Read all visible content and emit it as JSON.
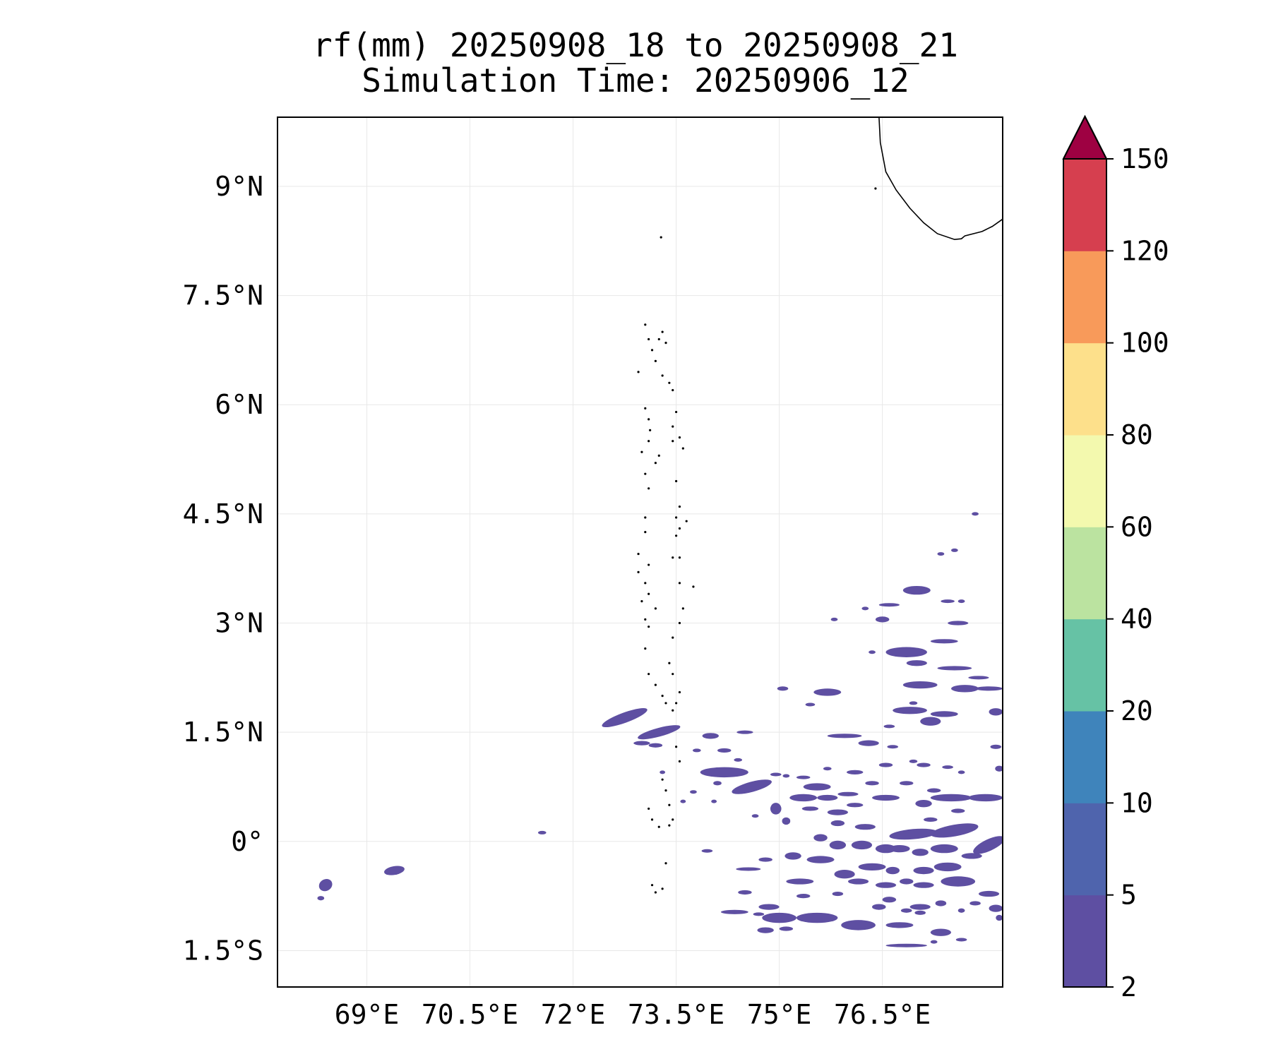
{
  "title": {
    "line1": "rf(mm) 20250908_18 to 20250908_21",
    "line2": "Simulation Time: 20250906_12"
  },
  "map": {
    "lon_range": [
      67.7,
      78.25
    ],
    "lat_range": [
      -2.0,
      9.95
    ],
    "x_ticks": [
      {
        "value": 69.0,
        "label": "69°E"
      },
      {
        "value": 70.5,
        "label": "70.5°E"
      },
      {
        "value": 72.0,
        "label": "72°E"
      },
      {
        "value": 73.5,
        "label": "73.5°E"
      },
      {
        "value": 75.0,
        "label": "75°E"
      },
      {
        "value": 76.5,
        "label": "76.5°E"
      }
    ],
    "y_ticks": [
      {
        "value": 9.0,
        "label": "9°N"
      },
      {
        "value": 7.5,
        "label": "7.5°N"
      },
      {
        "value": 6.0,
        "label": "6°N"
      },
      {
        "value": 4.5,
        "label": "4.5°N"
      },
      {
        "value": 3.0,
        "label": "3°N"
      },
      {
        "value": 1.5,
        "label": "1.5°N"
      },
      {
        "value": 0.0,
        "label": "0°"
      },
      {
        "value": -1.5,
        "label": "1.5°S"
      }
    ],
    "grid": true,
    "coastline": [
      [
        76.45,
        9.97
      ],
      [
        76.47,
        9.6
      ],
      [
        76.55,
        9.2
      ],
      [
        76.7,
        8.95
      ],
      [
        76.9,
        8.7
      ],
      [
        77.1,
        8.5
      ],
      [
        77.3,
        8.35
      ],
      [
        77.55,
        8.27
      ],
      [
        77.65,
        8.28
      ],
      [
        77.7,
        8.32
      ],
      [
        77.95,
        8.38
      ],
      [
        78.1,
        8.45
      ],
      [
        78.25,
        8.55
      ]
    ],
    "islands": [
      [
        73.28,
        8.3
      ],
      [
        73.05,
        7.1
      ],
      [
        73.1,
        6.9
      ],
      [
        73.15,
        6.75
      ],
      [
        73.25,
        6.9
      ],
      [
        73.3,
        7.0
      ],
      [
        73.35,
        6.85
      ],
      [
        73.2,
        6.6
      ],
      [
        73.3,
        6.4
      ],
      [
        73.4,
        6.3
      ],
      [
        73.45,
        6.2
      ],
      [
        72.95,
        6.45
      ],
      [
        73.05,
        5.95
      ],
      [
        73.1,
        5.8
      ],
      [
        73.12,
        5.65
      ],
      [
        73.1,
        5.5
      ],
      [
        73.0,
        5.35
      ],
      [
        73.25,
        5.3
      ],
      [
        73.2,
        5.2
      ],
      [
        73.05,
        5.05
      ],
      [
        73.1,
        4.85
      ],
      [
        73.5,
        5.9
      ],
      [
        73.45,
        5.7
      ],
      [
        73.45,
        5.5
      ],
      [
        73.6,
        5.4
      ],
      [
        73.55,
        5.55
      ],
      [
        73.5,
        4.95
      ],
      [
        73.55,
        4.6
      ],
      [
        73.5,
        4.45
      ],
      [
        73.65,
        4.4
      ],
      [
        73.55,
        4.3
      ],
      [
        73.5,
        4.2
      ],
      [
        73.55,
        3.9
      ],
      [
        73.45,
        3.9
      ],
      [
        73.05,
        4.45
      ],
      [
        73.05,
        4.25
      ],
      [
        72.95,
        3.95
      ],
      [
        73.1,
        3.8
      ],
      [
        72.95,
        3.7
      ],
      [
        73.05,
        3.55
      ],
      [
        73.1,
        3.4
      ],
      [
        73.55,
        3.55
      ],
      [
        73.75,
        3.5
      ],
      [
        73.0,
        3.3
      ],
      [
        73.2,
        3.2
      ],
      [
        73.05,
        3.05
      ],
      [
        73.1,
        2.95
      ],
      [
        73.6,
        3.2
      ],
      [
        73.55,
        3.0
      ],
      [
        73.45,
        2.8
      ],
      [
        73.05,
        2.65
      ],
      [
        73.4,
        2.45
      ],
      [
        73.45,
        2.3
      ],
      [
        73.1,
        2.3
      ],
      [
        73.2,
        2.15
      ],
      [
        73.3,
        2.0
      ],
      [
        73.35,
        1.9
      ],
      [
        73.55,
        2.05
      ],
      [
        73.5,
        1.9
      ],
      [
        73.45,
        1.8
      ],
      [
        73.5,
        1.3
      ],
      [
        73.55,
        1.1
      ],
      [
        73.3,
        0.85
      ],
      [
        73.35,
        0.7
      ],
      [
        73.4,
        0.5
      ],
      [
        73.1,
        0.45
      ],
      [
        73.15,
        0.3
      ],
      [
        73.25,
        0.2
      ],
      [
        73.4,
        0.22
      ],
      [
        73.45,
        0.3
      ],
      [
        73.35,
        -0.3
      ],
      [
        73.15,
        -0.6
      ],
      [
        73.2,
        -0.7
      ],
      [
        73.3,
        -0.65
      ],
      [
        76.4,
        8.97
      ]
    ]
  },
  "rain_patches": [
    [
      72.75,
      1.7,
      0.35,
      0.07,
      -20
    ],
    [
      73.25,
      1.5,
      0.32,
      0.06,
      -15
    ],
    [
      73.0,
      1.35,
      0.12,
      0.03,
      0
    ],
    [
      73.2,
      1.32,
      0.1,
      0.03,
      0
    ],
    [
      74.0,
      1.45,
      0.12,
      0.04,
      0
    ],
    [
      74.5,
      1.5,
      0.12,
      0.02,
      0
    ],
    [
      74.2,
      0.95,
      0.35,
      0.07,
      0
    ],
    [
      74.6,
      0.75,
      0.3,
      0.07,
      -15
    ],
    [
      74.1,
      0.8,
      0.06,
      0.03,
      0
    ],
    [
      74.95,
      0.92,
      0.08,
      0.02,
      0
    ],
    [
      75.1,
      0.9,
      0.05,
      0.02,
      0
    ],
    [
      75.35,
      0.88,
      0.1,
      0.02,
      0
    ],
    [
      74.2,
      1.25,
      0.1,
      0.03,
      0
    ],
    [
      73.8,
      1.25,
      0.06,
      0.02,
      0
    ],
    [
      74.4,
      1.12,
      0.06,
      0.02,
      0
    ],
    [
      75.95,
      1.45,
      0.25,
      0.03,
      0
    ],
    [
      76.6,
      1.58,
      0.08,
      0.02,
      0
    ],
    [
      76.3,
      1.35,
      0.15,
      0.04,
      0
    ],
    [
      76.65,
      1.3,
      0.08,
      0.02,
      0
    ],
    [
      75.7,
      2.05,
      0.2,
      0.05,
      0
    ],
    [
      75.05,
      2.1,
      0.08,
      0.03,
      0
    ],
    [
      75.45,
      1.88,
      0.07,
      0.02,
      0
    ],
    [
      76.85,
      2.6,
      0.3,
      0.07,
      0
    ],
    [
      77.4,
      2.75,
      0.2,
      0.03,
      0
    ],
    [
      77.0,
      2.45,
      0.15,
      0.04,
      0
    ],
    [
      77.55,
      2.38,
      0.25,
      0.03,
      0
    ],
    [
      76.9,
      1.8,
      0.25,
      0.05,
      0
    ],
    [
      77.2,
      1.65,
      0.15,
      0.06,
      0
    ],
    [
      77.4,
      1.75,
      0.2,
      0.04,
      0
    ],
    [
      78.15,
      1.78,
      0.1,
      0.05,
      0
    ],
    [
      77.05,
      2.15,
      0.25,
      0.05,
      0
    ],
    [
      77.7,
      2.1,
      0.2,
      0.05,
      0
    ],
    [
      78.05,
      2.1,
      0.2,
      0.03,
      0
    ],
    [
      77.9,
      2.25,
      0.15,
      0.02,
      0
    ],
    [
      76.6,
      3.25,
      0.15,
      0.02,
      0
    ],
    [
      77.0,
      3.45,
      0.2,
      0.06,
      0
    ],
    [
      77.6,
      3.0,
      0.15,
      0.03,
      0
    ],
    [
      76.95,
      1.9,
      0.06,
      0.02,
      0
    ],
    [
      76.5,
      3.05,
      0.1,
      0.04,
      0
    ],
    [
      77.45,
      3.3,
      0.1,
      0.02,
      0
    ],
    [
      77.65,
      3.3,
      0.05,
      0.02,
      0
    ],
    [
      76.35,
      2.6,
      0.05,
      0.02,
      0
    ],
    [
      75.35,
      0.6,
      0.2,
      0.05,
      0
    ],
    [
      75.7,
      0.6,
      0.15,
      0.04,
      0
    ],
    [
      75.55,
      0.75,
      0.2,
      0.05,
      0
    ],
    [
      76.0,
      0.65,
      0.15,
      0.03,
      0
    ],
    [
      75.45,
      0.45,
      0.12,
      0.03,
      0
    ],
    [
      75.85,
      0.4,
      0.15,
      0.04,
      0
    ],
    [
      76.1,
      0.5,
      0.12,
      0.03,
      0
    ],
    [
      76.55,
      0.6,
      0.2,
      0.04,
      0
    ],
    [
      77.1,
      0.52,
      0.12,
      0.05,
      0
    ],
    [
      77.5,
      0.6,
      0.3,
      0.05,
      0
    ],
    [
      78.0,
      0.6,
      0.25,
      0.05,
      0
    ],
    [
      76.35,
      0.8,
      0.1,
      0.03,
      0
    ],
    [
      76.85,
      0.8,
      0.1,
      0.03,
      0
    ],
    [
      77.25,
      0.7,
      0.1,
      0.03,
      0
    ],
    [
      77.6,
      0.42,
      0.1,
      0.03,
      0
    ],
    [
      77.2,
      0.3,
      0.1,
      0.03,
      0
    ],
    [
      76.95,
      0.1,
      0.35,
      0.07,
      -5
    ],
    [
      77.55,
      0.15,
      0.35,
      0.08,
      -10
    ],
    [
      78.05,
      -0.05,
      0.25,
      0.08,
      -25
    ],
    [
      76.75,
      -0.1,
      0.15,
      0.05,
      0
    ],
    [
      77.05,
      -0.15,
      0.12,
      0.05,
      0
    ],
    [
      77.4,
      -0.1,
      0.2,
      0.06,
      0
    ],
    [
      77.8,
      -0.2,
      0.15,
      0.04,
      0
    ],
    [
      75.85,
      -0.05,
      0.12,
      0.06,
      0
    ],
    [
      76.2,
      -0.05,
      0.15,
      0.06,
      0
    ],
    [
      76.55,
      -0.1,
      0.15,
      0.06,
      0
    ],
    [
      76.25,
      0.2,
      0.15,
      0.04,
      0
    ],
    [
      75.6,
      0.05,
      0.1,
      0.05,
      0
    ],
    [
      75.85,
      0.25,
      0.1,
      0.04,
      0
    ],
    [
      75.6,
      -0.25,
      0.2,
      0.05,
      0
    ],
    [
      75.95,
      -0.45,
      0.15,
      0.06,
      0
    ],
    [
      76.35,
      -0.35,
      0.2,
      0.05,
      0
    ],
    [
      76.65,
      -0.4,
      0.1,
      0.05,
      0
    ],
    [
      77.1,
      -0.4,
      0.15,
      0.05,
      0
    ],
    [
      77.45,
      -0.35,
      0.2,
      0.06,
      0
    ],
    [
      76.15,
      -0.55,
      0.15,
      0.04,
      0
    ],
    [
      76.55,
      -0.6,
      0.15,
      0.04,
      0
    ],
    [
      76.85,
      -0.55,
      0.1,
      0.04,
      0
    ],
    [
      77.1,
      -0.6,
      0.15,
      0.04,
      0
    ],
    [
      77.6,
      -0.55,
      0.25,
      0.07,
      0
    ],
    [
      78.05,
      -0.72,
      0.15,
      0.04,
      0
    ],
    [
      77.65,
      -0.95,
      0.05,
      0.03,
      0
    ],
    [
      78.15,
      -0.92,
      0.1,
      0.05,
      0
    ],
    [
      76.6,
      -0.8,
      0.1,
      0.04,
      0
    ],
    [
      77.05,
      -0.9,
      0.15,
      0.04,
      0
    ],
    [
      77.35,
      -0.85,
      0.08,
      0.04,
      0
    ],
    [
      77.85,
      -0.85,
      0.08,
      0.03,
      0
    ],
    [
      75.2,
      -0.2,
      0.12,
      0.05,
      0
    ],
    [
      75.3,
      -0.55,
      0.2,
      0.04,
      0
    ],
    [
      74.8,
      -0.25,
      0.1,
      0.03,
      0
    ],
    [
      74.55,
      -0.38,
      0.18,
      0.02,
      0
    ],
    [
      74.5,
      -0.7,
      0.1,
      0.03,
      0
    ],
    [
      74.85,
      -0.9,
      0.15,
      0.04,
      0
    ],
    [
      75.35,
      -0.75,
      0.1,
      0.03,
      0
    ],
    [
      75.85,
      -0.72,
      0.08,
      0.03,
      0
    ],
    [
      75.0,
      -1.05,
      0.25,
      0.07,
      0
    ],
    [
      75.55,
      -1.05,
      0.3,
      0.07,
      0
    ],
    [
      76.15,
      -1.15,
      0.25,
      0.07,
      0
    ],
    [
      74.8,
      -1.22,
      0.12,
      0.04,
      0
    ],
    [
      76.75,
      -1.15,
      0.2,
      0.04,
      0
    ],
    [
      77.05,
      -0.98,
      0.08,
      0.03,
      0
    ],
    [
      76.45,
      -0.9,
      0.1,
      0.04,
      0
    ],
    [
      76.85,
      -0.95,
      0.08,
      0.03,
      0
    ],
    [
      77.35,
      -1.25,
      0.15,
      0.05,
      0
    ],
    [
      77.65,
      -1.35,
      0.08,
      0.02,
      0
    ],
    [
      76.85,
      -1.43,
      0.3,
      0.02,
      0
    ],
    [
      77.25,
      -1.38,
      0.05,
      0.02,
      0
    ],
    [
      74.35,
      -0.97,
      0.2,
      0.03,
      0
    ],
    [
      74.7,
      -1.0,
      0.08,
      0.02,
      0
    ],
    [
      75.1,
      -1.2,
      0.1,
      0.03,
      0
    ],
    [
      78.2,
      -1.05,
      0.05,
      0.04,
      0
    ],
    [
      78.2,
      1.0,
      0.06,
      0.04,
      0
    ],
    [
      78.15,
      1.3,
      0.08,
      0.03,
      0
    ],
    [
      74.95,
      0.45,
      0.08,
      0.08,
      0
    ],
    [
      75.1,
      0.28,
      0.06,
      0.05,
      0
    ],
    [
      73.95,
      -0.13,
      0.08,
      0.02,
      0
    ],
    [
      73.6,
      0.55,
      0.04,
      0.02,
      0
    ],
    [
      71.55,
      0.12,
      0.06,
      0.02,
      0
    ],
    [
      68.4,
      -0.6,
      0.1,
      0.08,
      -30
    ],
    [
      68.33,
      -0.78,
      0.05,
      0.03,
      0
    ],
    [
      69.4,
      -0.4,
      0.15,
      0.06,
      -10
    ],
    [
      76.25,
      3.2,
      0.05,
      0.02,
      0
    ],
    [
      77.35,
      3.95,
      0.05,
      0.02,
      0
    ],
    [
      77.55,
      4.0,
      0.05,
      0.02,
      0
    ],
    [
      77.85,
      4.5,
      0.05,
      0.02,
      0
    ],
    [
      75.8,
      3.05,
      0.05,
      0.02,
      0
    ],
    [
      77.1,
      1.05,
      0.1,
      0.03,
      0
    ],
    [
      77.45,
      1.02,
      0.08,
      0.02,
      0
    ],
    [
      77.65,
      0.95,
      0.05,
      0.02,
      0
    ],
    [
      76.1,
      0.95,
      0.12,
      0.03,
      0
    ],
    [
      76.55,
      1.05,
      0.1,
      0.03,
      0
    ],
    [
      76.95,
      1.1,
      0.06,
      0.02,
      0
    ],
    [
      75.7,
      1.0,
      0.06,
      0.02,
      0
    ],
    [
      73.3,
      0.95,
      0.04,
      0.02,
      0
    ],
    [
      73.75,
      0.68,
      0.05,
      0.02,
      0
    ],
    [
      74.05,
      0.55,
      0.04,
      0.02,
      0
    ],
    [
      74.65,
      0.35,
      0.05,
      0.02,
      0
    ]
  ],
  "colorbar": {
    "levels": [
      2,
      5,
      10,
      20,
      40,
      60,
      80,
      100,
      120,
      150
    ],
    "tick_labels": [
      "2",
      "5",
      "10",
      "20",
      "40",
      "60",
      "80",
      "100",
      "120",
      "150"
    ],
    "colors": [
      "#5e4fa2",
      "#4f64ad",
      "#3f84bb",
      "#66c2a5",
      "#bbe3a0",
      "#f3f9ae",
      "#fde08b",
      "#f89a5a",
      "#d63f4f"
    ],
    "extend_color": "#9e0142"
  },
  "style": {
    "rain_color": "#5e4fa2",
    "grid_color": "#e8e8e8",
    "frame_color": "#000000"
  }
}
